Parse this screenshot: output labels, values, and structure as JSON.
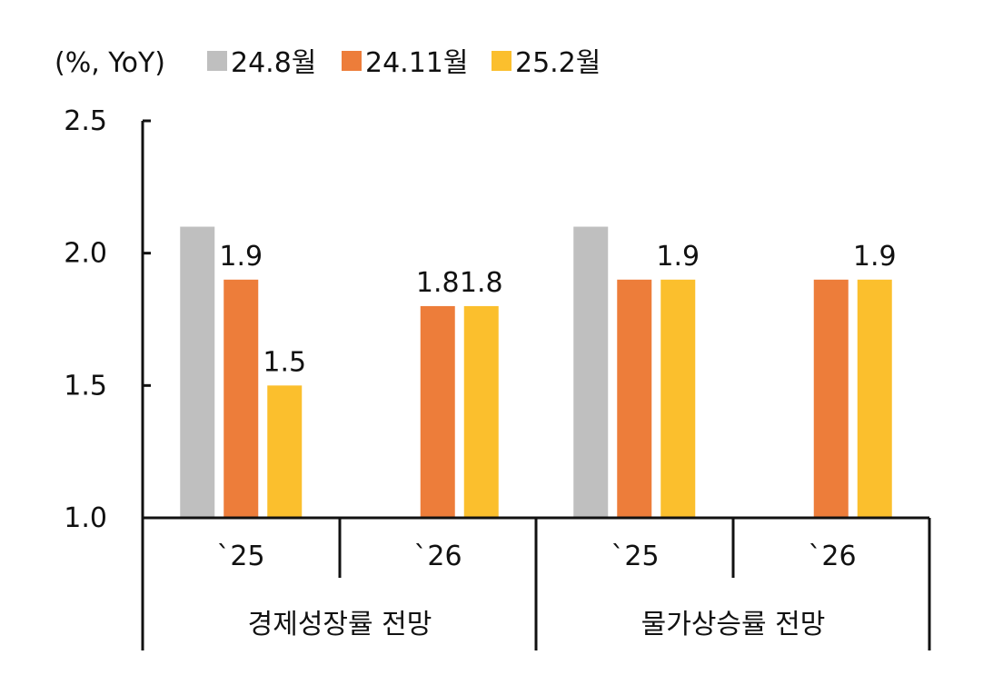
{
  "chart_data": {
    "type": "bar",
    "unit_label": "(%, YoY)",
    "ylim": [
      1.0,
      2.5
    ],
    "yticks": [
      1.0,
      1.5,
      2.0,
      2.5
    ],
    "ytick_labels": [
      "1.0",
      "1.5",
      "2.0",
      "2.5"
    ],
    "legend_position": "top",
    "series": [
      {
        "name": "24.8월",
        "color": "#BFBFBF",
        "values": [
          2.1,
          null,
          2.1,
          null
        ],
        "labels": [
          "",
          "",
          "",
          ""
        ]
      },
      {
        "name": "24.11월",
        "color": "#ED7D3A",
        "values": [
          1.9,
          1.8,
          1.9,
          1.9
        ],
        "labels": [
          "1.9",
          "1.8",
          "",
          ""
        ]
      },
      {
        "name": "25.2월",
        "color": "#FBBF2D",
        "values": [
          1.5,
          1.8,
          1.9,
          1.9
        ],
        "labels": [
          "1.5",
          "1.8",
          "1.9",
          "1.9"
        ]
      }
    ],
    "categories": [
      "`25",
      "`26",
      "`25",
      "`26"
    ],
    "groups": [
      {
        "label": "경제성장률 전망",
        "categories": [
          0,
          1
        ]
      },
      {
        "label": "물가상승률 전망",
        "categories": [
          2,
          3
        ]
      }
    ]
  }
}
